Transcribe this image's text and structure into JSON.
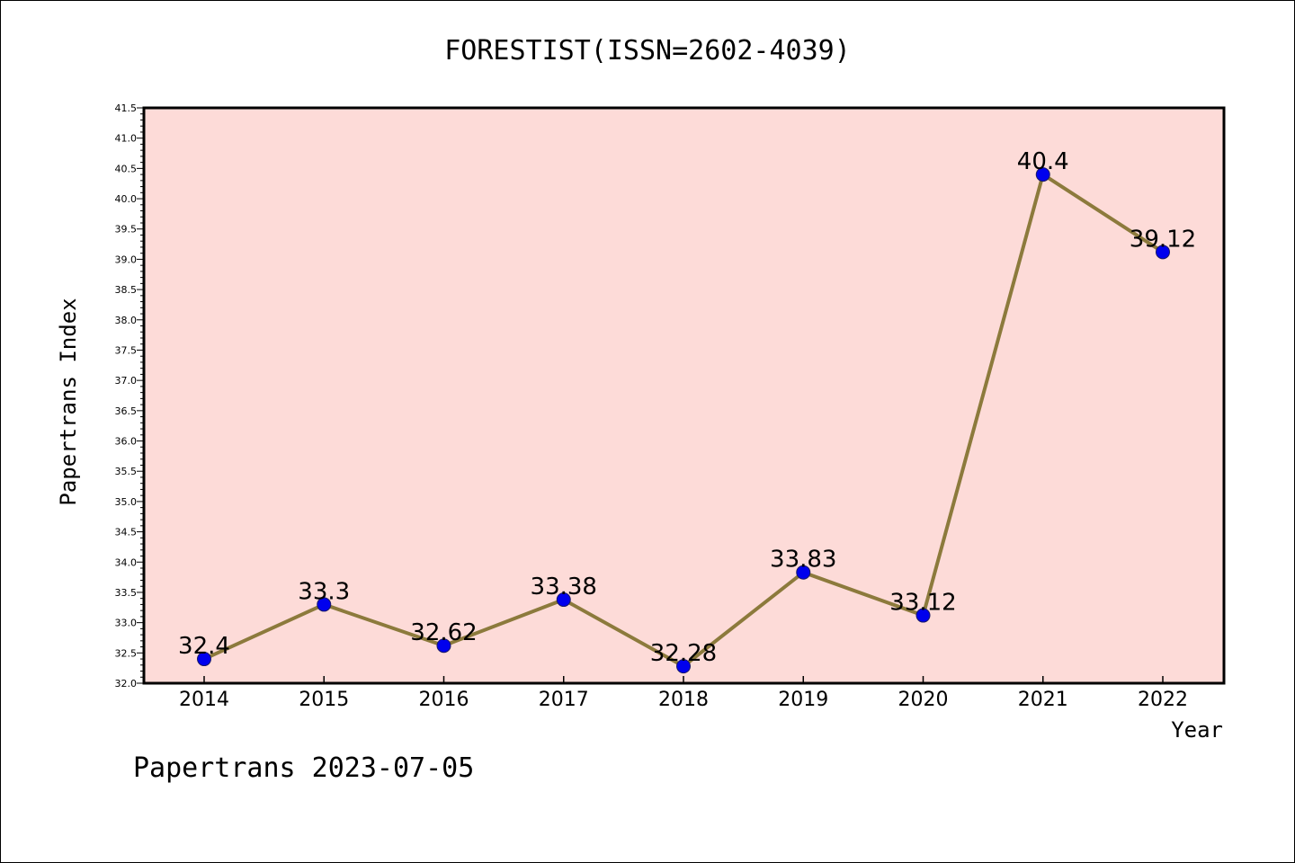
{
  "chart_data": {
    "type": "line",
    "title": "FORESTIST(ISSN=2602-4039)",
    "xlabel": "Year",
    "ylabel": "Papertrans Index",
    "footer": "Papertrans 2023-07-05",
    "categories": [
      "2014",
      "2015",
      "2016",
      "2017",
      "2018",
      "2019",
      "2020",
      "2021",
      "2022"
    ],
    "series": [
      {
        "values": [
          32.4,
          33.3,
          32.62,
          33.38,
          32.28,
          33.83,
          33.12,
          40.4,
          39.12
        ],
        "labels": [
          "32.4",
          "33.3",
          "32.62",
          "33.38",
          "32.28",
          "33.83",
          "33.12",
          "40.4",
          "39.12"
        ]
      }
    ],
    "ylim": [
      32.0,
      41.5
    ],
    "ytick_step": 0.5,
    "grid": false,
    "colors": {
      "plot_background": "#fddbd8",
      "line": "#8c7a3c",
      "marker": "#0000ee",
      "axis": "#000000"
    }
  }
}
